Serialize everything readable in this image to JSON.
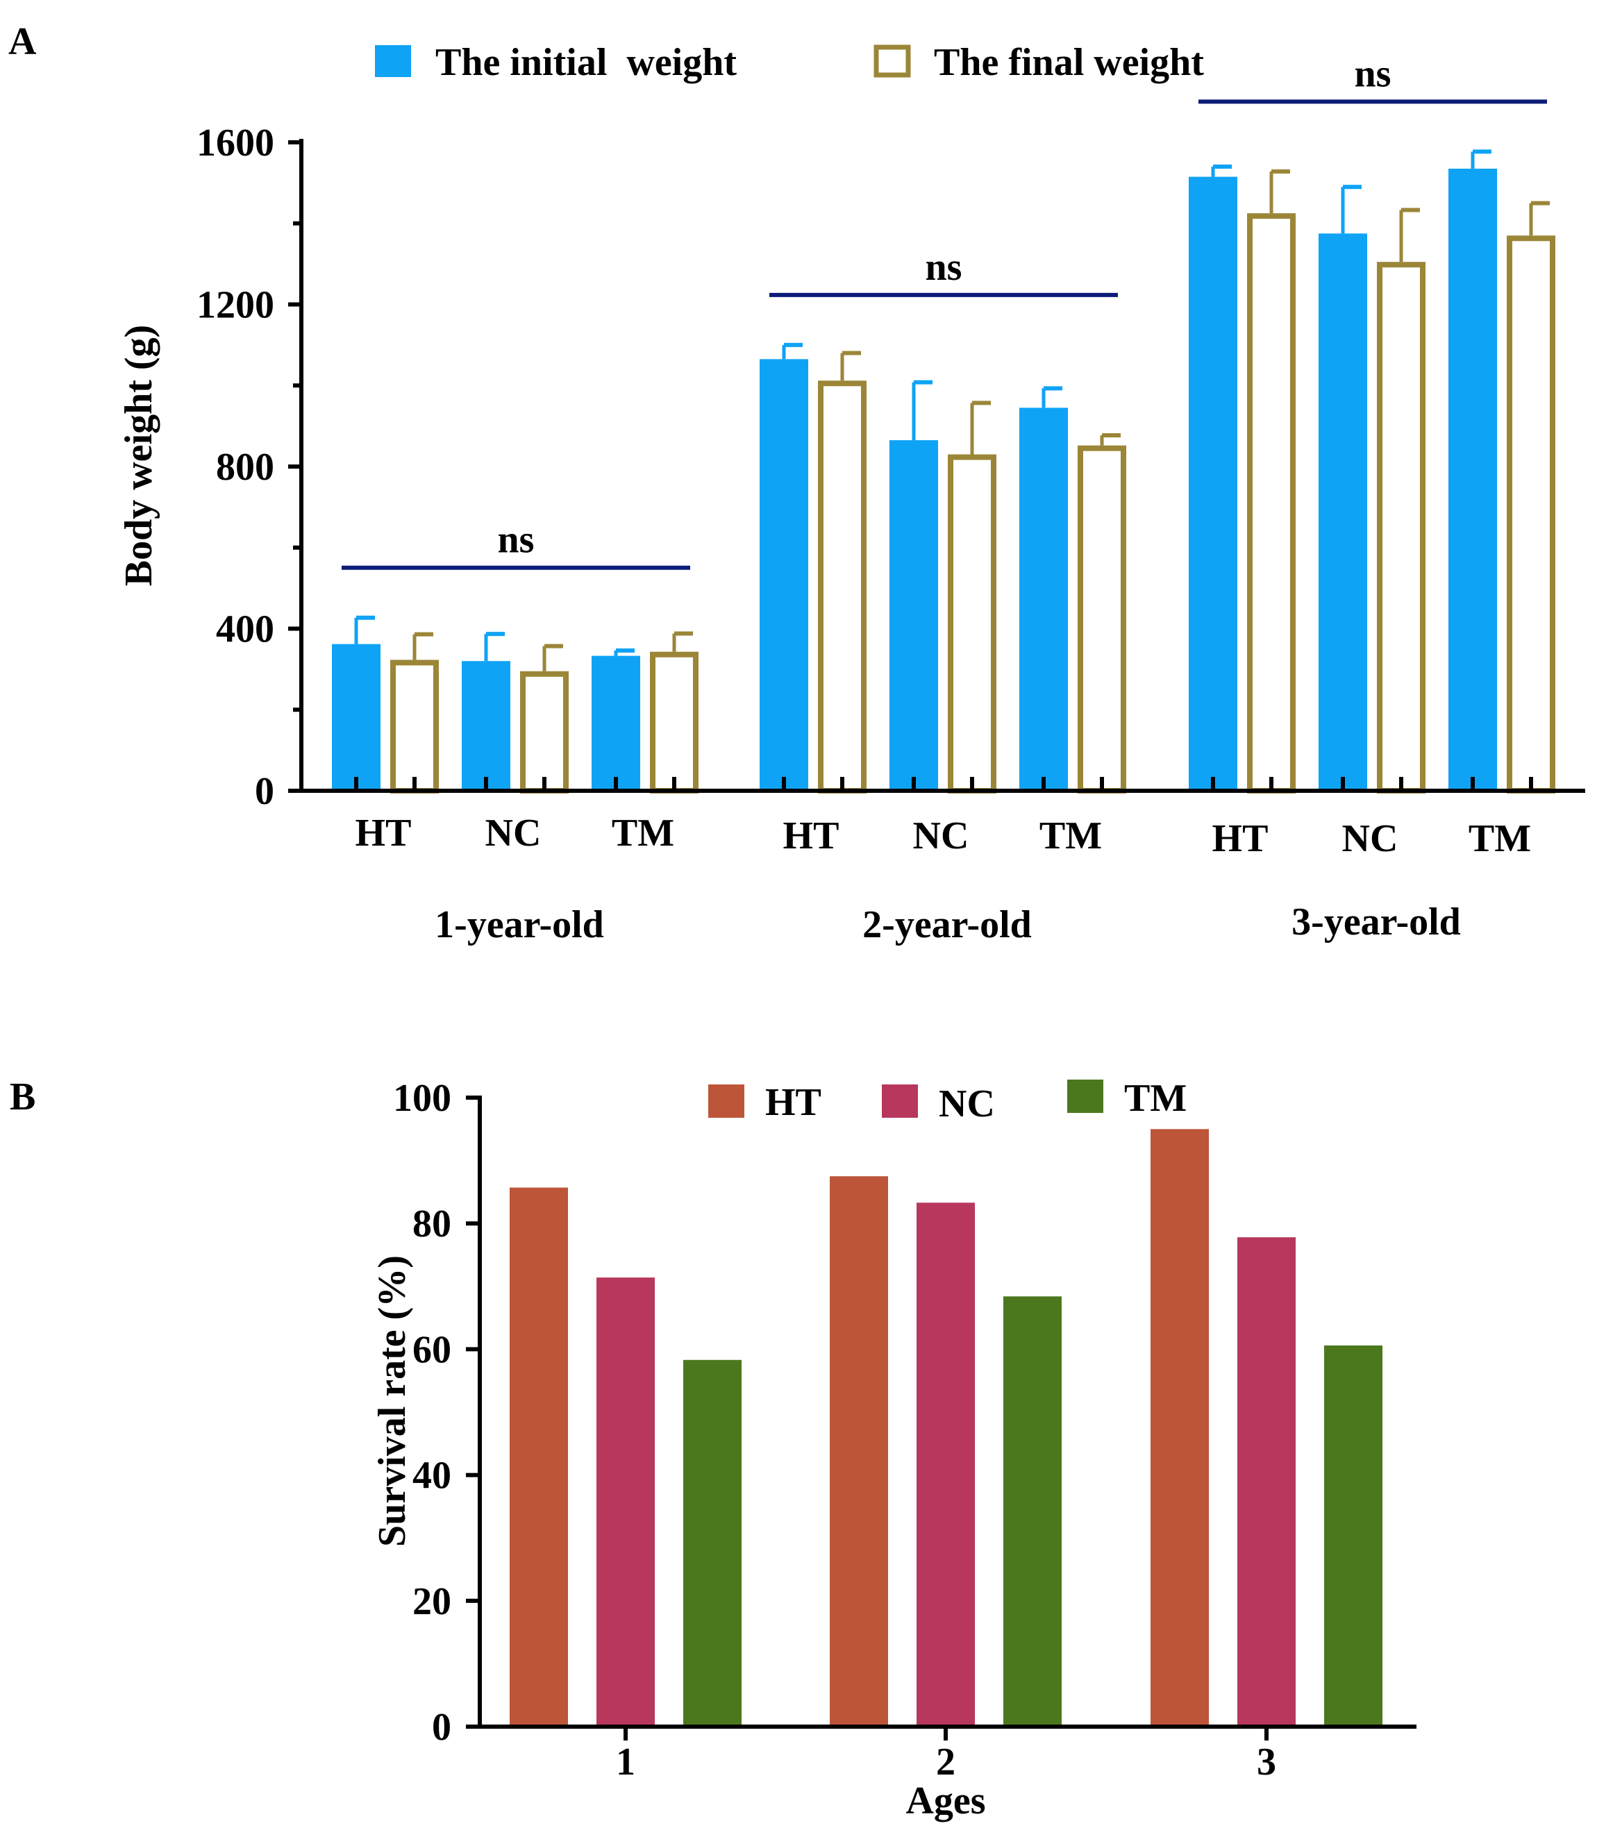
{
  "chart_data": [
    {
      "panel_label": "A",
      "type": "bar",
      "ylabel": "Body weight (g)",
      "ylim": [
        0,
        1600
      ],
      "yticks": [
        0,
        400,
        800,
        1200,
        1600
      ],
      "legend": {
        "placement": "top",
        "entries": [
          "The initial  weight",
          "The final weight"
        ]
      },
      "groups": [
        {
          "label": "1-year-old",
          "categories": [
            "HT",
            "NC",
            "TM"
          ],
          "significance": "ns",
          "initial": [
            362,
            320,
            333
          ],
          "initial_err": [
            65,
            67,
            13
          ],
          "final": [
            323,
            295,
            343
          ],
          "final_err": [
            63,
            62,
            45
          ]
        },
        {
          "label": "2-year-old",
          "categories": [
            "HT",
            "NC",
            "TM"
          ],
          "significance": "ns",
          "initial": [
            1065,
            865,
            945
          ],
          "initial_err": [
            35,
            143,
            48
          ],
          "final": [
            1012,
            830,
            852
          ],
          "final_err": [
            68,
            127,
            25
          ]
        },
        {
          "label": "3-year-old",
          "categories": [
            "HT",
            "NC",
            "TM"
          ],
          "significance": "ns",
          "initial": [
            1515,
            1375,
            1535
          ],
          "initial_err": [
            25,
            115,
            42
          ],
          "final": [
            1425,
            1305,
            1370
          ],
          "final_err": [
            103,
            128,
            80
          ]
        }
      ],
      "colors": {
        "initial": "#0fa3f5",
        "final": "#9b8638",
        "significance_bar": "#0c1c78"
      }
    },
    {
      "panel_label": "B",
      "type": "bar",
      "xlabel": "Ages",
      "ylabel": "Survival rate (%)",
      "ylim": [
        0,
        100
      ],
      "yticks": [
        0,
        20,
        40,
        60,
        80,
        100
      ],
      "categories": [
        "1",
        "2",
        "3"
      ],
      "legend": {
        "placement": "top"
      },
      "series": [
        {
          "name": "HT",
          "color": "#bd5539",
          "values": [
            85.7,
            87.5,
            95.0
          ]
        },
        {
          "name": "NC",
          "color": "#b8375c",
          "values": [
            71.4,
            83.3,
            77.8
          ]
        },
        {
          "name": "TM",
          "color": "#4c781d",
          "values": [
            58.3,
            68.4,
            60.6
          ]
        }
      ]
    }
  ]
}
